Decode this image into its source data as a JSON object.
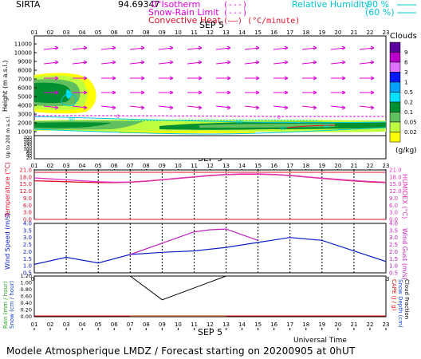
{
  "header": {
    "station": "SIRTA",
    "coords": "94.69347",
    "legend_isotherm": "0°Isotherm",
    "legend_isotherm_line": "(---)",
    "legend_snow": "Snow-Rain Limit",
    "legend_snow_line": "(---)",
    "legend_conv": "Convective Heat.",
    "legend_conv_line": "(——) (°C/minute)",
    "legend_rh": "Relative Humidity",
    "legend_rh_90": "90 %",
    "legend_rh_60": "(60 %)"
  },
  "colors": {
    "magenta": "#e000e0",
    "cyan": "#00c8d8",
    "temperature": "#e0102a",
    "humidex": "#e030c0",
    "wind_speed": "#1020c8",
    "wind_gust": "#c020c0",
    "rain": "#20a020",
    "snow": "#1040e0",
    "cape": "#e01010",
    "black": "#000000"
  },
  "footer": {
    "title": "Modele Atmospherique LMDZ / Forecast starting on 20200905 at 0hUT",
    "xaxis_label": "Universal Time"
  },
  "hours": [
    "01",
    "02",
    "03",
    "04",
    "05",
    "06",
    "07",
    "08",
    "09",
    "10",
    "11",
    "12",
    "13",
    "14",
    "15",
    "16",
    "17",
    "18",
    "19",
    "20",
    "21",
    "22",
    "23"
  ],
  "day_label": "SEP  5",
  "clouds_legend": {
    "title": "Clouds",
    "unit": "(g/kg)",
    "labels": [
      "9",
      "6",
      "3",
      "1",
      "0.5",
      "0.2",
      "0.1",
      "0.05",
      "0.02"
    ],
    "colors": [
      "#5a009a",
      "#b800c8",
      "#e070ff",
      "#0018ff",
      "#00a0ff",
      "#00e0ff",
      "#009030",
      "#60c060",
      "#c0ff40",
      "#ffff00"
    ]
  },
  "chart_data": [
    {
      "type": "area",
      "name": "cloud-height-panel",
      "ylabel": "Height  (m a.s.l.)",
      "ylabel_low": "Up to 200 m a.s.l.",
      "y_ticks_top": [
        11000,
        10000,
        9000,
        8000,
        7000,
        6000,
        5000,
        4000,
        3000,
        2000,
        1000
      ],
      "y_ticks_bottom": [
        200,
        180,
        160,
        140,
        120,
        100,
        80,
        60,
        40,
        20
      ],
      "isotherm_label": "0",
      "isotherm_height_m": 2900,
      "humidity_labels": [
        "90",
        "60",
        "90",
        "60"
      ],
      "wind_arrows": true
    },
    {
      "type": "line",
      "name": "temperature-panel",
      "ylabel_left": "Temperature (°C)",
      "ylabel_right": "HUMIDEX (°C)",
      "ylim": [
        0,
        21
      ],
      "y_ticks": [
        0.0,
        3.0,
        6.0,
        9.0,
        12.0,
        15.0,
        18.0,
        21.0
      ],
      "x": [
        1,
        2,
        3,
        4,
        5,
        6,
        7,
        8,
        9,
        10,
        11,
        12,
        13,
        14,
        15,
        16,
        17,
        18,
        19,
        20,
        21,
        22,
        23
      ],
      "series": [
        {
          "name": "Temperature",
          "color": "#e0102a",
          "values": [
            16.4,
            16.2,
            16.0,
            15.8,
            15.6,
            15.6,
            15.8,
            16.2,
            16.8,
            17.4,
            18.0,
            18.6,
            19.0,
            19.2,
            19.2,
            19.0,
            18.6,
            18.0,
            17.4,
            16.8,
            16.3,
            15.9,
            15.6
          ]
        },
        {
          "name": "Humidex",
          "color": "#e030c0",
          "values": [
            17.6,
            17.2,
            16.8,
            16.4,
            16.0,
            15.8,
            15.9,
            16.3,
            16.9,
            17.5,
            18.1,
            18.7,
            19.1,
            19.3,
            19.3,
            19.1,
            18.7,
            18.1,
            17.5,
            17.0,
            16.5,
            16.1,
            15.8
          ]
        }
      ]
    },
    {
      "type": "line",
      "name": "wind-panel",
      "ylabel_left": "Wind Speed (m/s)",
      "ylabel_right": "Wind Gust (m/s)",
      "ylim": [
        0.5,
        4.0
      ],
      "y_ticks": [
        0.5,
        1.0,
        1.5,
        2.0,
        2.5,
        3.0,
        3.5,
        4.0
      ],
      "x": [
        1,
        3,
        5,
        7,
        9,
        11,
        13,
        15,
        17,
        19,
        23
      ],
      "series": [
        {
          "name": "Wind Speed",
          "color": "#1020c8",
          "values": [
            1.1,
            1.6,
            1.2,
            1.8,
            1.95,
            2.05,
            2.3,
            2.65,
            3.0,
            2.8,
            1.3
          ]
        },
        {
          "name": "Wind Gust",
          "color": "#c020c0",
          "x": [
            7,
            9,
            11,
            12,
            13,
            15
          ],
          "values": [
            1.8,
            2.6,
            3.4,
            3.55,
            3.6,
            2.8
          ]
        }
      ]
    },
    {
      "type": "line",
      "name": "precip-panel",
      "ylabel_left_1": "Rain (mm / hour)",
      "ylabel_left_2": "Snow (cm / hour)",
      "ylabel_right_1": "CAPE (J / g)",
      "ylabel_right_2": "Snow Depth (cm)",
      "ylabel_right_3": "Cloud Fraction",
      "ylim": [
        0,
        1.2
      ],
      "y_ticks": [
        0.0,
        0.2,
        0.4,
        0.6,
        0.8,
        1.0,
        1.2
      ],
      "x": [
        7,
        9,
        13
      ],
      "series": [
        {
          "name": "Cloud Fraction",
          "color": "#000000",
          "values": [
            1.2,
            0.5,
            1.2
          ]
        },
        {
          "name": "Rain",
          "color": "#20a020",
          "values": [
            0.0,
            0.0,
            0.0
          ]
        }
      ]
    }
  ]
}
